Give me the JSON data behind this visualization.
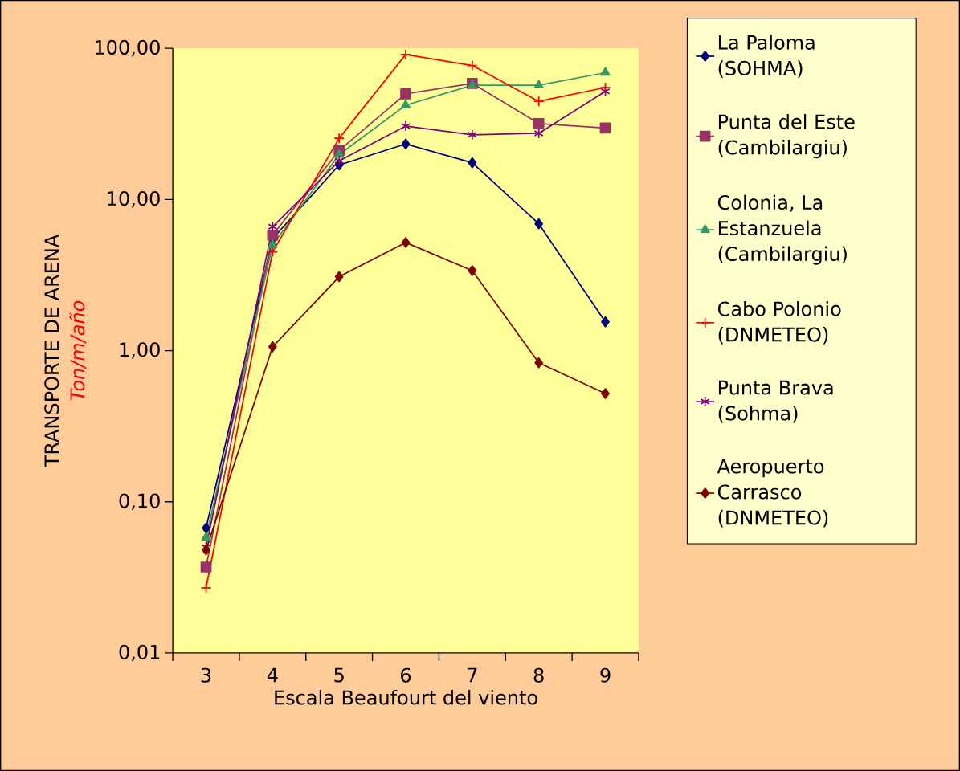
{
  "chart_data": {
    "type": "line",
    "xlabel": "Escala Beaufourt del viento",
    "ylabel": "TRANSPORTE DE ARENA",
    "annotations": [
      "Ton/m/año"
    ],
    "categories": [
      "3",
      "4",
      "5",
      "6",
      "7",
      "8",
      "9"
    ],
    "log": "y",
    "ylim": [
      0.01,
      100
    ],
    "yticks": [
      {
        "value": 0.01,
        "label": "0,01"
      },
      {
        "value": 0.1,
        "label": "0,10"
      },
      {
        "value": 1,
        "label": "1,00"
      },
      {
        "value": 10,
        "label": "10,00"
      },
      {
        "value": 100,
        "label": "100,00"
      }
    ],
    "legend": "right",
    "series": [
      {
        "name": "La Paloma (SOHMA)",
        "color": "#000080",
        "marker": "diamond",
        "values": [
          0.067,
          5.5,
          16.9,
          23.3,
          17.5,
          6.9,
          1.55
        ]
      },
      {
        "name": "Punta del Este (Cambilargiu)",
        "color": "#993366",
        "marker": "square",
        "values": [
          0.037,
          5.8,
          21.1,
          50,
          58.6,
          31.8,
          29.7
        ]
      },
      {
        "name": "Colonia, La Estanzuela (Cambilargiu)",
        "color": "#339966",
        "marker": "triangle",
        "values": [
          0.058,
          5.0,
          19.8,
          42,
          57,
          57,
          69
        ]
      },
      {
        "name": "Cabo Polonio (DNMETEO)",
        "color": "#ff0000",
        "marker": "cross",
        "values": [
          0.027,
          4.5,
          25.4,
          91,
          77,
          44.6,
          55
        ]
      },
      {
        "name": "Punta Brava (Sohma)",
        "color": "#800080",
        "marker": "cross",
        "values": [
          0.05,
          6.6,
          18,
          30.6,
          26.8,
          27.4,
          51.9
        ]
      },
      {
        "name": "Aeropuerto Carrasco (DNMETEO)",
        "color": "#800000",
        "marker": "diamond",
        "values": [
          0.048,
          1.06,
          3.08,
          5.19,
          3.38,
          0.83,
          0.52
        ]
      }
    ]
  }
}
